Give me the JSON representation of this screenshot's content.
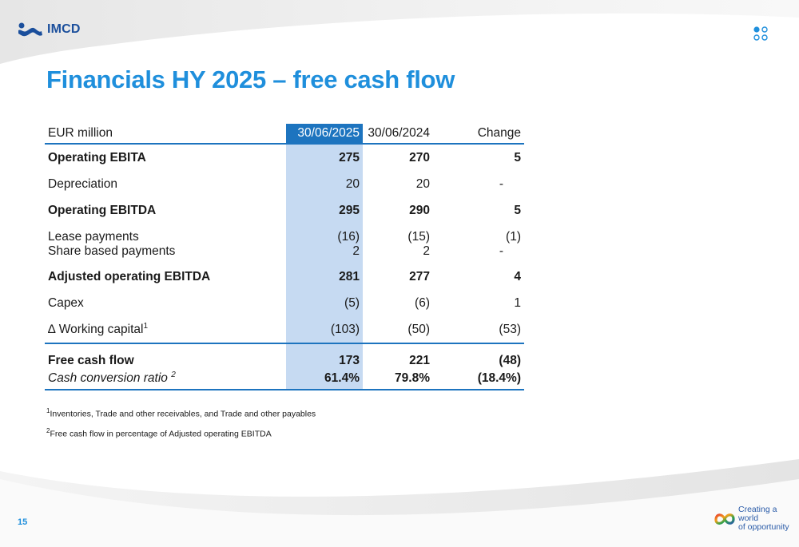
{
  "header": {
    "logo_text": "IMCD",
    "title": "Financials HY 2025 – free cash flow"
  },
  "table": {
    "headers": {
      "label": "EUR million",
      "current": "30/06/2025",
      "prior": "30/06/2024",
      "change": "Change"
    },
    "rows": [
      {
        "label": "Operating EBITA",
        "current": "275",
        "prior": "270",
        "change": "5"
      },
      {
        "label": "Depreciation",
        "current": "20",
        "prior": "20",
        "change": "-"
      },
      {
        "label": "Operating EBITDA",
        "current": "295",
        "prior": "290",
        "change": "5"
      },
      {
        "label": "Lease payments",
        "current": "(16)",
        "prior": "(15)",
        "change": "(1)"
      },
      {
        "label": "Share based payments",
        "current": "2",
        "prior": "2",
        "change": "-"
      },
      {
        "label": "Adjusted operating EBITDA",
        "current": "281",
        "prior": "277",
        "change": "4"
      },
      {
        "label": "Capex",
        "current": "(5)",
        "prior": "(6)",
        "change": "1"
      },
      {
        "label": "∆ Working capital",
        "sup": "1",
        "current": "(103)",
        "prior": "(50)",
        "change": "(53)"
      },
      {
        "label": "Free cash flow",
        "current": "173",
        "prior": "221",
        "change": "(48)"
      },
      {
        "label": "Cash conversion ratio ",
        "sup": "2",
        "current": "61.4%",
        "prior": "79.8%",
        "change": "(18.4%)"
      }
    ]
  },
  "footnotes": [
    {
      "mark": "1",
      "text": "Inventories, Trade and other receivables, and Trade and other payables"
    },
    {
      "mark": "2",
      "text": "Free cash flow in percentage of Adjusted operating EBITDA"
    }
  ],
  "footer": {
    "page_number": "15",
    "tagline_line1": "Creating a world",
    "tagline_line2": "of opportunity"
  },
  "colors": {
    "accent": "#1f8fdc",
    "header_fill": "#1d74bf",
    "current_column_fill": "#c6daf2",
    "logo": "#1b4f9c"
  },
  "icons": [
    "imcd-logo-icon",
    "dots-menu-icon",
    "infinity-logo-icon"
  ]
}
